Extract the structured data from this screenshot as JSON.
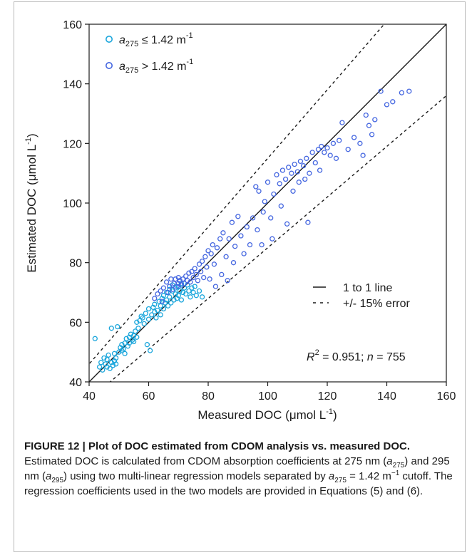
{
  "chart_data": {
    "type": "scatter",
    "xlabel": "Measured DOC (μmol L⁻¹)",
    "ylabel": "Estimated DOC (μmol L⁻¹)",
    "xlim": [
      40,
      160
    ],
    "ylim": [
      40,
      160
    ],
    "xticks": [
      40,
      60,
      80,
      100,
      120,
      140,
      160
    ],
    "yticks": [
      40,
      60,
      80,
      100,
      120,
      140,
      160
    ],
    "grid": false,
    "legend_position": "top-left",
    "series": [
      {
        "name": "a275 ≤ 1.42 m⁻¹",
        "color": "#1aa6dc",
        "points": [
          [
            42.0,
            54.5
          ],
          [
            43.5,
            45.0
          ],
          [
            44.0,
            46.5
          ],
          [
            44.5,
            44.0
          ],
          [
            45.0,
            48.0
          ],
          [
            45.5,
            46.0
          ],
          [
            46.0,
            45.0
          ],
          [
            46.0,
            47.5
          ],
          [
            46.5,
            49.0
          ],
          [
            47.0,
            44.5
          ],
          [
            47.5,
            46.5
          ],
          [
            47.5,
            58.0
          ],
          [
            48.0,
            45.5
          ],
          [
            48.5,
            47.0
          ],
          [
            48.5,
            49.5
          ],
          [
            49.0,
            46.0
          ],
          [
            49.0,
            48.0
          ],
          [
            49.5,
            58.5
          ],
          [
            50.0,
            50.0
          ],
          [
            50.5,
            51.5
          ],
          [
            51.0,
            50.5
          ],
          [
            51.0,
            52.5
          ],
          [
            51.5,
            51.0
          ],
          [
            52.0,
            53.0
          ],
          [
            52.0,
            49.5
          ],
          [
            52.5,
            54.5
          ],
          [
            53.0,
            52.0
          ],
          [
            53.5,
            55.0
          ],
          [
            53.5,
            53.0
          ],
          [
            54.0,
            56.0
          ],
          [
            54.5,
            54.0
          ],
          [
            55.0,
            55.5
          ],
          [
            55.0,
            53.5
          ],
          [
            55.5,
            57.0
          ],
          [
            56.0,
            55.0
          ],
          [
            56.0,
            60.0
          ],
          [
            56.5,
            58.0
          ],
          [
            57.0,
            60.5
          ],
          [
            57.5,
            62.0
          ],
          [
            58.0,
            61.5
          ],
          [
            58.5,
            59.5
          ],
          [
            59.0,
            63.0
          ],
          [
            59.5,
            52.5
          ],
          [
            60.0,
            61.0
          ],
          [
            60.0,
            64.5
          ],
          [
            60.5,
            50.5
          ],
          [
            61.0,
            62.5
          ],
          [
            61.5,
            65.0
          ],
          [
            62.0,
            63.5
          ],
          [
            62.0,
            66.0
          ],
          [
            62.5,
            61.5
          ],
          [
            63.0,
            64.0
          ],
          [
            63.5,
            67.0
          ],
          [
            64.0,
            65.5
          ],
          [
            64.0,
            62.5
          ],
          [
            64.5,
            68.0
          ],
          [
            65.0,
            64.5
          ],
          [
            65.0,
            69.0
          ],
          [
            65.5,
            66.5
          ],
          [
            66.0,
            70.0
          ],
          [
            66.0,
            67.5
          ],
          [
            66.5,
            65.5
          ],
          [
            67.0,
            71.0
          ],
          [
            67.0,
            68.5
          ],
          [
            67.5,
            66.5
          ],
          [
            68.0,
            70.5
          ],
          [
            68.0,
            72.5
          ],
          [
            68.5,
            67.5
          ],
          [
            69.0,
            69.5
          ],
          [
            69.0,
            71.5
          ],
          [
            69.5,
            68.0
          ],
          [
            70.0,
            72.0
          ],
          [
            70.0,
            69.0
          ],
          [
            70.5,
            70.5
          ],
          [
            71.0,
            67.5
          ],
          [
            71.0,
            73.0
          ],
          [
            71.5,
            70.0
          ],
          [
            72.0,
            71.5
          ],
          [
            72.5,
            69.5
          ],
          [
            73.0,
            72.5
          ],
          [
            73.5,
            70.5
          ],
          [
            74.0,
            68.5
          ],
          [
            74.5,
            71.5
          ],
          [
            75.0,
            70.0
          ],
          [
            75.5,
            72.0
          ],
          [
            76.0,
            69.0
          ],
          [
            77.0,
            70.5
          ],
          [
            78.0,
            68.5
          ]
        ]
      },
      {
        "name": "a275 > 1.42 m⁻¹",
        "color": "#4466e0",
        "points": [
          [
            62.0,
            68.0
          ],
          [
            63.0,
            69.5
          ],
          [
            64.0,
            70.5
          ],
          [
            64.5,
            67.0
          ],
          [
            65.0,
            71.5
          ],
          [
            66.0,
            73.5
          ],
          [
            66.5,
            70.0
          ],
          [
            67.0,
            72.0
          ],
          [
            67.5,
            74.5
          ],
          [
            68.0,
            71.0
          ],
          [
            68.5,
            73.0
          ],
          [
            69.0,
            74.5
          ],
          [
            69.5,
            72.0
          ],
          [
            70.0,
            75.0
          ],
          [
            70.0,
            73.0
          ],
          [
            70.5,
            74.0
          ],
          [
            71.0,
            72.5
          ],
          [
            71.5,
            74.5
          ],
          [
            72.0,
            73.0
          ],
          [
            72.5,
            75.5
          ],
          [
            73.0,
            74.0
          ],
          [
            73.5,
            76.5
          ],
          [
            74.0,
            73.5
          ],
          [
            74.5,
            77.0
          ],
          [
            75.0,
            75.0
          ],
          [
            75.5,
            78.0
          ],
          [
            76.0,
            76.0
          ],
          [
            76.5,
            74.0
          ],
          [
            77.0,
            79.5
          ],
          [
            77.5,
            77.0
          ],
          [
            78.0,
            80.5
          ],
          [
            78.5,
            75.0
          ],
          [
            79.0,
            82.0
          ],
          [
            79.5,
            78.5
          ],
          [
            80.0,
            84.0
          ],
          [
            80.5,
            74.5
          ],
          [
            81.0,
            83.0
          ],
          [
            81.5,
            86.0
          ],
          [
            82.0,
            79.5
          ],
          [
            82.5,
            72.0
          ],
          [
            83.0,
            85.0
          ],
          [
            84.0,
            88.0
          ],
          [
            84.5,
            76.0
          ],
          [
            85.0,
            90.0
          ],
          [
            86.0,
            82.0
          ],
          [
            86.5,
            74.0
          ],
          [
            87.0,
            88.0
          ],
          [
            88.0,
            93.5
          ],
          [
            88.5,
            80.0
          ],
          [
            89.0,
            85.5
          ],
          [
            90.0,
            95.5
          ],
          [
            91.0,
            89.0
          ],
          [
            92.0,
            83.0
          ],
          [
            93.0,
            92.0
          ],
          [
            94.0,
            86.0
          ],
          [
            95.0,
            95.0
          ],
          [
            96.0,
            105.5
          ],
          [
            96.5,
            91.0
          ],
          [
            97.0,
            104.0
          ],
          [
            98.0,
            86.0
          ],
          [
            98.5,
            97.0
          ],
          [
            99.0,
            100.5
          ],
          [
            100.0,
            107.0
          ],
          [
            101.0,
            95.0
          ],
          [
            101.5,
            88.0
          ],
          [
            102.0,
            103.0
          ],
          [
            103.0,
            109.5
          ],
          [
            104.0,
            106.5
          ],
          [
            104.5,
            99.0
          ],
          [
            105.0,
            111.0
          ],
          [
            106.0,
            108.0
          ],
          [
            106.5,
            93.0
          ],
          [
            107.0,
            112.0
          ],
          [
            108.0,
            110.0
          ],
          [
            108.5,
            104.0
          ],
          [
            109.0,
            113.0
          ],
          [
            110.0,
            110.5
          ],
          [
            110.5,
            107.0
          ],
          [
            111.0,
            114.0
          ],
          [
            112.0,
            112.5
          ],
          [
            112.5,
            108.0
          ],
          [
            113.0,
            115.0
          ],
          [
            113.5,
            93.5
          ],
          [
            114.0,
            110.0
          ],
          [
            115.0,
            117.0
          ],
          [
            116.0,
            113.5
          ],
          [
            117.0,
            118.0
          ],
          [
            117.5,
            111.0
          ],
          [
            118.0,
            119.0
          ],
          [
            119.0,
            117.0
          ],
          [
            120.0,
            118.5
          ],
          [
            121.0,
            116.0
          ],
          [
            122.0,
            120.0
          ],
          [
            123.0,
            115.0
          ],
          [
            124.0,
            121.0
          ],
          [
            125.0,
            127.0
          ],
          [
            127.0,
            118.0
          ],
          [
            129.0,
            122.0
          ],
          [
            131.0,
            120.0
          ],
          [
            132.0,
            116.0
          ],
          [
            133.0,
            129.5
          ],
          [
            134.0,
            126.0
          ],
          [
            135.0,
            123.0
          ],
          [
            136.0,
            128.0
          ],
          [
            138.0,
            137.5
          ],
          [
            140.0,
            133.0
          ],
          [
            142.0,
            134.0
          ],
          [
            145.0,
            137.0
          ],
          [
            147.5,
            137.5
          ]
        ]
      }
    ],
    "reference_lines": [
      {
        "name": "1 to 1 line",
        "style": "solid",
        "slope": 1.0
      },
      {
        "name": "+/- 15% error",
        "style": "dashed",
        "slope": 1.15
      },
      {
        "name": "+/- 15% error",
        "style": "dashed",
        "slope": 0.85
      }
    ],
    "annotation": {
      "r2_label": "R",
      "r2_sup": "2",
      "r2_value": " = 0.951;  ",
      "n_label": "n",
      "n_value": " = 755"
    },
    "legend": {
      "a_symbol": "a",
      "a_sub": "275",
      "le_text": " ≤ 1.42 m",
      "gt_text": " > 1.42 m",
      "unit_sup": "-1"
    },
    "lines_legend": {
      "solid": "1 to 1 line",
      "dashed": "+/- 15% error"
    }
  },
  "caption": {
    "figure_label": "FIGURE 12 | Plot of DOC estimated from CDOM analysis vs. measured DOC.",
    "text_1": " Estimated DOC is calculated from CDOM absorption coefficients at 275 nm (",
    "a": "a",
    "sub_275": "275",
    "text_2": ") and 295 nm (",
    "sub_295": "295",
    "text_3": ") using two multi-linear regression models separated by ",
    "text_4": " = 1.42 m",
    "sup_m1": "−1",
    "text_5": " cutoff. The regression coefficients used in the two models are provided in Equations (5) and (6)."
  }
}
